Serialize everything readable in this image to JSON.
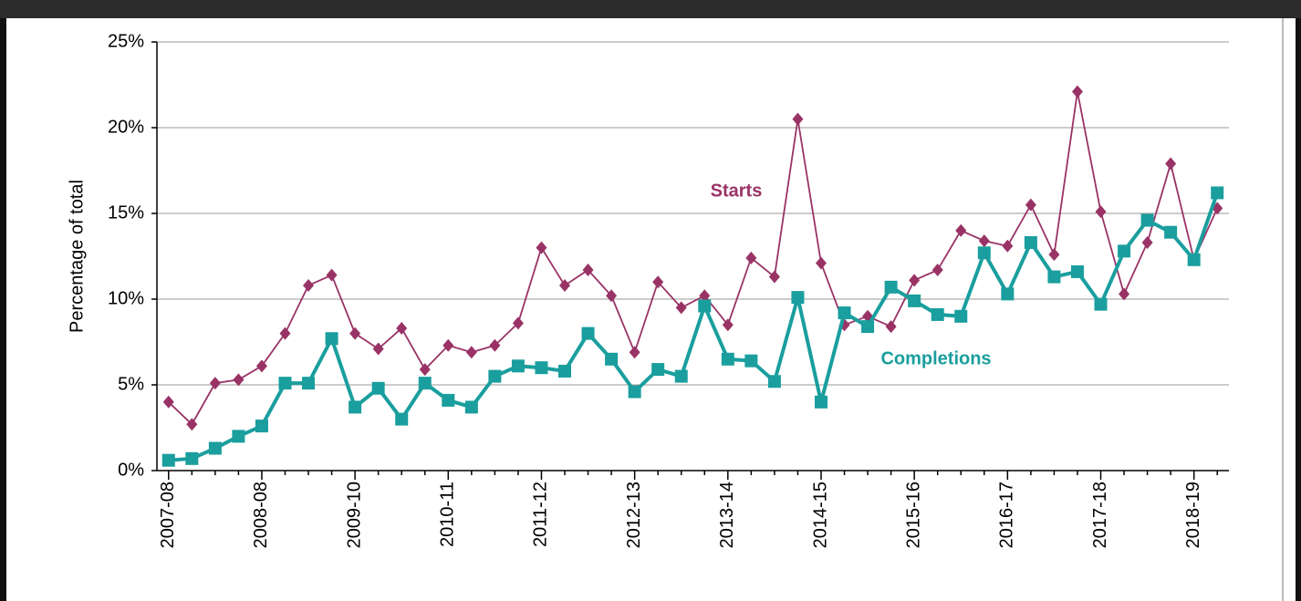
{
  "chart_data": {
    "type": "line",
    "y_label": "Percentage of total",
    "categories": [
      "2007-08",
      null,
      null,
      null,
      "2008-08",
      null,
      null,
      null,
      "2009-10",
      null,
      null,
      null,
      "2010-11",
      null,
      null,
      null,
      "2011-12",
      null,
      null,
      null,
      "2012-13",
      null,
      null,
      null,
      "2013-14",
      null,
      null,
      null,
      "2014-15",
      null,
      null,
      null,
      "2015-16",
      null,
      null,
      null,
      "2016-17",
      null,
      null,
      null,
      "2017-18",
      null,
      null,
      null,
      "2018-19",
      null
    ],
    "series": [
      {
        "name": "Starts",
        "color": "#993366",
        "marker": "diamond",
        "values": [
          4.0,
          2.7,
          5.1,
          5.3,
          6.1,
          8.0,
          10.8,
          11.4,
          8.0,
          7.1,
          8.3,
          5.9,
          7.3,
          6.9,
          7.3,
          8.6,
          13.0,
          10.8,
          11.7,
          10.2,
          6.9,
          11.0,
          9.5,
          10.2,
          8.5,
          12.4,
          11.3,
          20.5,
          12.1,
          8.5,
          9.0,
          8.4,
          11.1,
          11.7,
          14.0,
          13.4,
          13.1,
          15.5,
          12.6,
          22.1,
          15.1,
          10.3,
          13.3,
          17.9,
          12.3,
          15.3
        ]
      },
      {
        "name": "Completions",
        "color": "#1a9e9e",
        "marker": "square",
        "values": [
          0.6,
          0.7,
          1.3,
          2.0,
          2.6,
          5.1,
          5.1,
          7.7,
          3.7,
          4.8,
          3.0,
          5.1,
          4.1,
          3.7,
          5.5,
          6.1,
          6.0,
          5.8,
          8.0,
          6.5,
          4.6,
          5.9,
          5.5,
          9.6,
          6.5,
          6.4,
          5.2,
          10.1,
          4.0,
          9.2,
          8.4,
          10.7,
          9.9,
          9.1,
          9.0,
          12.7,
          10.3,
          13.3,
          11.3,
          11.6,
          9.7,
          12.8,
          14.6,
          13.9,
          12.3,
          16.2
        ]
      }
    ],
    "ylim": [
      0,
      25
    ],
    "yticks": [
      {
        "value": 0,
        "label": "0%"
      },
      {
        "value": 5,
        "label": "5%"
      },
      {
        "value": 10,
        "label": "10%"
      },
      {
        "value": 15,
        "label": "15%"
      },
      {
        "value": 20,
        "label": "20%"
      },
      {
        "value": 25,
        "label": "25%"
      }
    ],
    "grid": true
  }
}
